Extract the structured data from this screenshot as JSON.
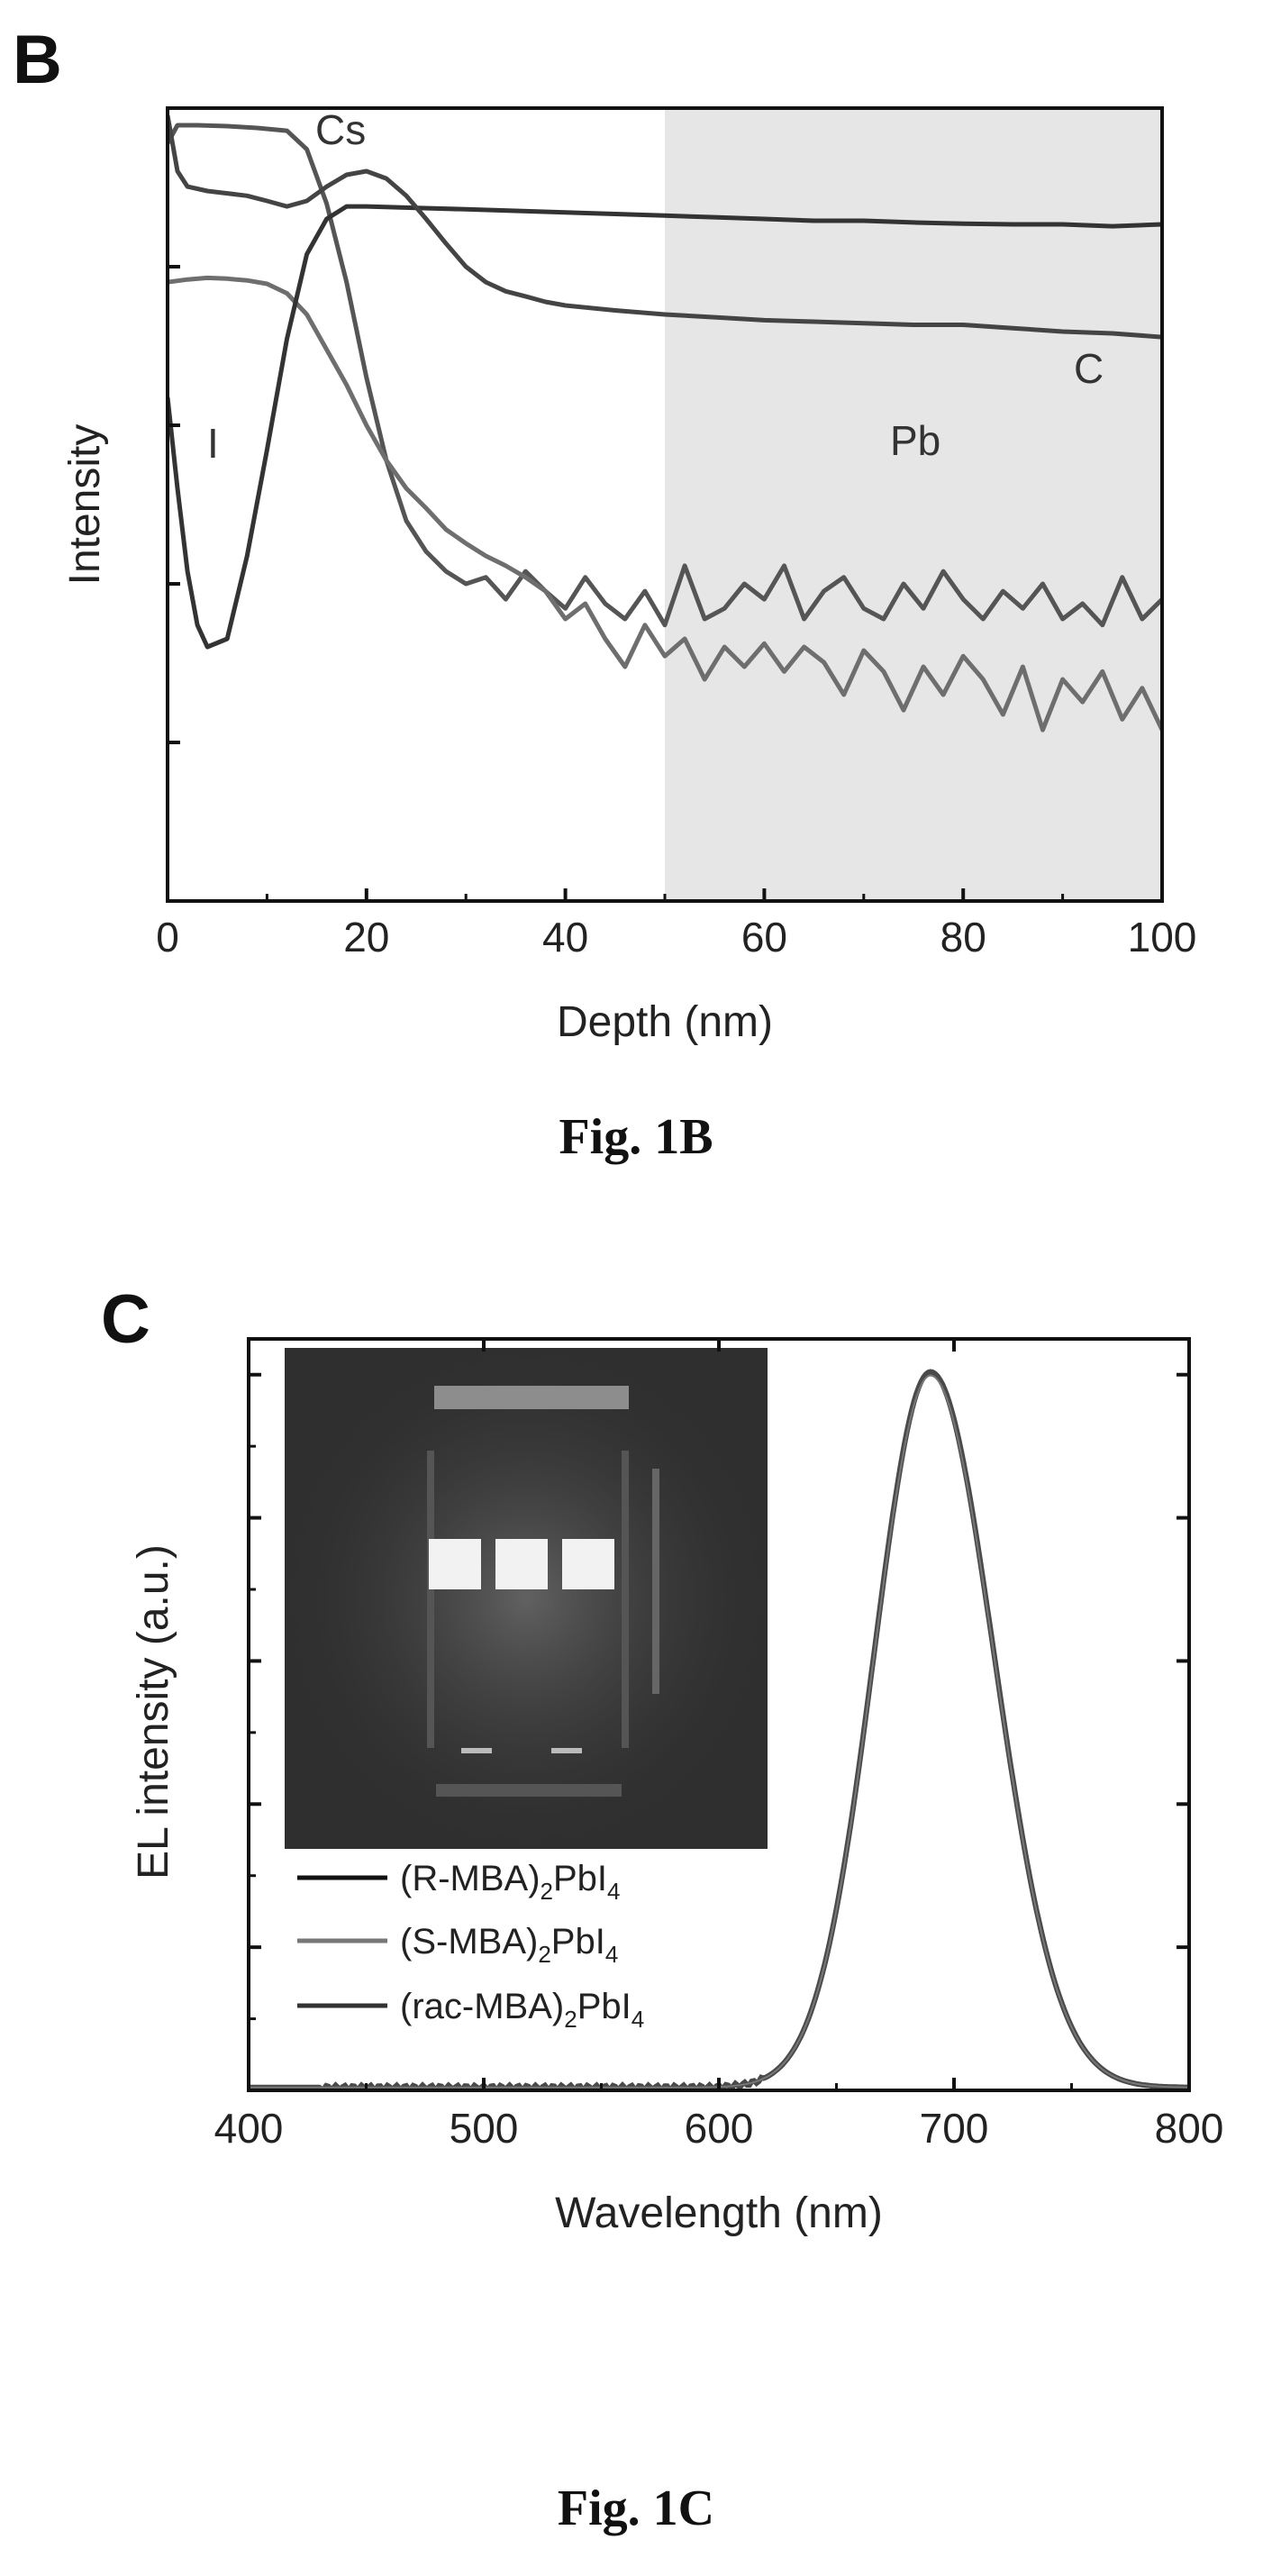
{
  "chart_data": [
    {
      "panel": "B",
      "type": "line",
      "caption": "Fig. 1B",
      "xlabel": "Depth (nm)",
      "ylabel": "Intensity",
      "xlim": [
        0,
        100
      ],
      "x_ticks": [
        "0",
        "20",
        "40",
        "60",
        "80",
        "100"
      ],
      "y_scale": "log",
      "y_ticks_labeled": false,
      "ylim": [
        1,
        100000
      ],
      "shaded_region": {
        "from_x": 50,
        "to_x": 100,
        "color": "#e6e6e6"
      },
      "series": [
        {
          "name": "Cs",
          "color": "#555555",
          "x": [
            0,
            1,
            3,
            6,
            9,
            12,
            14,
            16,
            18,
            20,
            22,
            24,
            26,
            28,
            30,
            32,
            34,
            36,
            38,
            40,
            42,
            44,
            46,
            48,
            50,
            52,
            54,
            56,
            58,
            60,
            62,
            64,
            66,
            68,
            70,
            72,
            74,
            76,
            78,
            80,
            82,
            84,
            86,
            88,
            90,
            92,
            94,
            96,
            98,
            100
          ],
          "y": [
            60000,
            78000,
            78000,
            77000,
            75000,
            72000,
            55000,
            25000,
            8000,
            2000,
            600,
            250,
            160,
            120,
            100,
            110,
            80,
            120,
            90,
            70,
            110,
            75,
            60,
            90,
            55,
            130,
            60,
            70,
            100,
            80,
            130,
            60,
            90,
            110,
            70,
            60,
            100,
            70,
            120,
            80,
            60,
            90,
            70,
            100,
            60,
            75,
            55,
            110,
            60,
            80
          ]
        },
        {
          "name": "I",
          "color": "#6e6e6e",
          "x": [
            0,
            2,
            4,
            6,
            8,
            10,
            12,
            14,
            16,
            18,
            20,
            22,
            24,
            26,
            28,
            30,
            32,
            34,
            36,
            38,
            40,
            42,
            44,
            46,
            48,
            50,
            52,
            54,
            56,
            58,
            60,
            62,
            64,
            66,
            68,
            70,
            72,
            74,
            76,
            78,
            80,
            82,
            84,
            86,
            88,
            90,
            92,
            94,
            96,
            98,
            100
          ],
          "y": [
            8000,
            8300,
            8500,
            8400,
            8200,
            7800,
            6800,
            5000,
            3000,
            1800,
            1000,
            600,
            400,
            300,
            220,
            180,
            150,
            130,
            110,
            90,
            60,
            75,
            45,
            30,
            55,
            35,
            45,
            25,
            40,
            30,
            42,
            28,
            40,
            32,
            20,
            38,
            28,
            16,
            30,
            20,
            35,
            25,
            15,
            30,
            12,
            25,
            18,
            28,
            14,
            22,
            12
          ]
        },
        {
          "name": "C",
          "color": "#333333",
          "x": [
            0,
            1,
            2,
            3,
            4,
            6,
            8,
            10,
            12,
            14,
            16,
            18,
            20,
            25,
            30,
            35,
            40,
            45,
            50,
            55,
            60,
            65,
            70,
            75,
            80,
            85,
            90,
            95,
            100
          ],
          "y": [
            1500,
            400,
            120,
            55,
            40,
            45,
            150,
            700,
            3500,
            12000,
            20000,
            24000,
            24000,
            23500,
            23000,
            22500,
            22000,
            21500,
            21000,
            20500,
            20000,
            19500,
            19500,
            19000,
            18700,
            18500,
            18500,
            18000,
            18500
          ]
        },
        {
          "name": "Pb",
          "color": "#444444",
          "x": [
            0,
            1,
            2,
            4,
            6,
            8,
            10,
            12,
            14,
            16,
            18,
            20,
            22,
            24,
            26,
            28,
            30,
            32,
            34,
            36,
            38,
            40,
            45,
            50,
            55,
            60,
            65,
            70,
            75,
            80,
            85,
            90,
            95,
            100
          ],
          "y": [
            90000,
            40000,
            32000,
            30000,
            29000,
            28000,
            26000,
            24000,
            26000,
            32000,
            38000,
            40000,
            36000,
            28000,
            20000,
            14000,
            10000,
            8000,
            7000,
            6500,
            6000,
            5700,
            5300,
            5000,
            4800,
            4600,
            4500,
            4400,
            4300,
            4300,
            4100,
            3900,
            3800,
            3600
          ]
        }
      ]
    },
    {
      "panel": "C",
      "type": "line",
      "caption": "Fig. 1C",
      "xlabel": "Wavelength (nm)",
      "ylabel": "EL intensity (a.u.)",
      "xlim": [
        400,
        800
      ],
      "x_ticks": [
        "400",
        "500",
        "600",
        "700",
        "800"
      ],
      "ylim": [
        0,
        1.05
      ],
      "y_ticks_labeled": false,
      "peak_nm": 690,
      "inset": "photograph of glowing device pixels",
      "legend": [
        {
          "base": "(R-MBA)",
          "sub1": "2",
          "mid": "PbI",
          "sub2": "4",
          "color": "#111111"
        },
        {
          "base": "(S-MBA)",
          "sub1": "2",
          "mid": "PbI",
          "sub2": "4",
          "color": "#777777"
        },
        {
          "base": "(rac-MBA)",
          "sub1": "2",
          "mid": "PbI",
          "sub2": "4",
          "color": "#333333"
        }
      ]
    }
  ]
}
